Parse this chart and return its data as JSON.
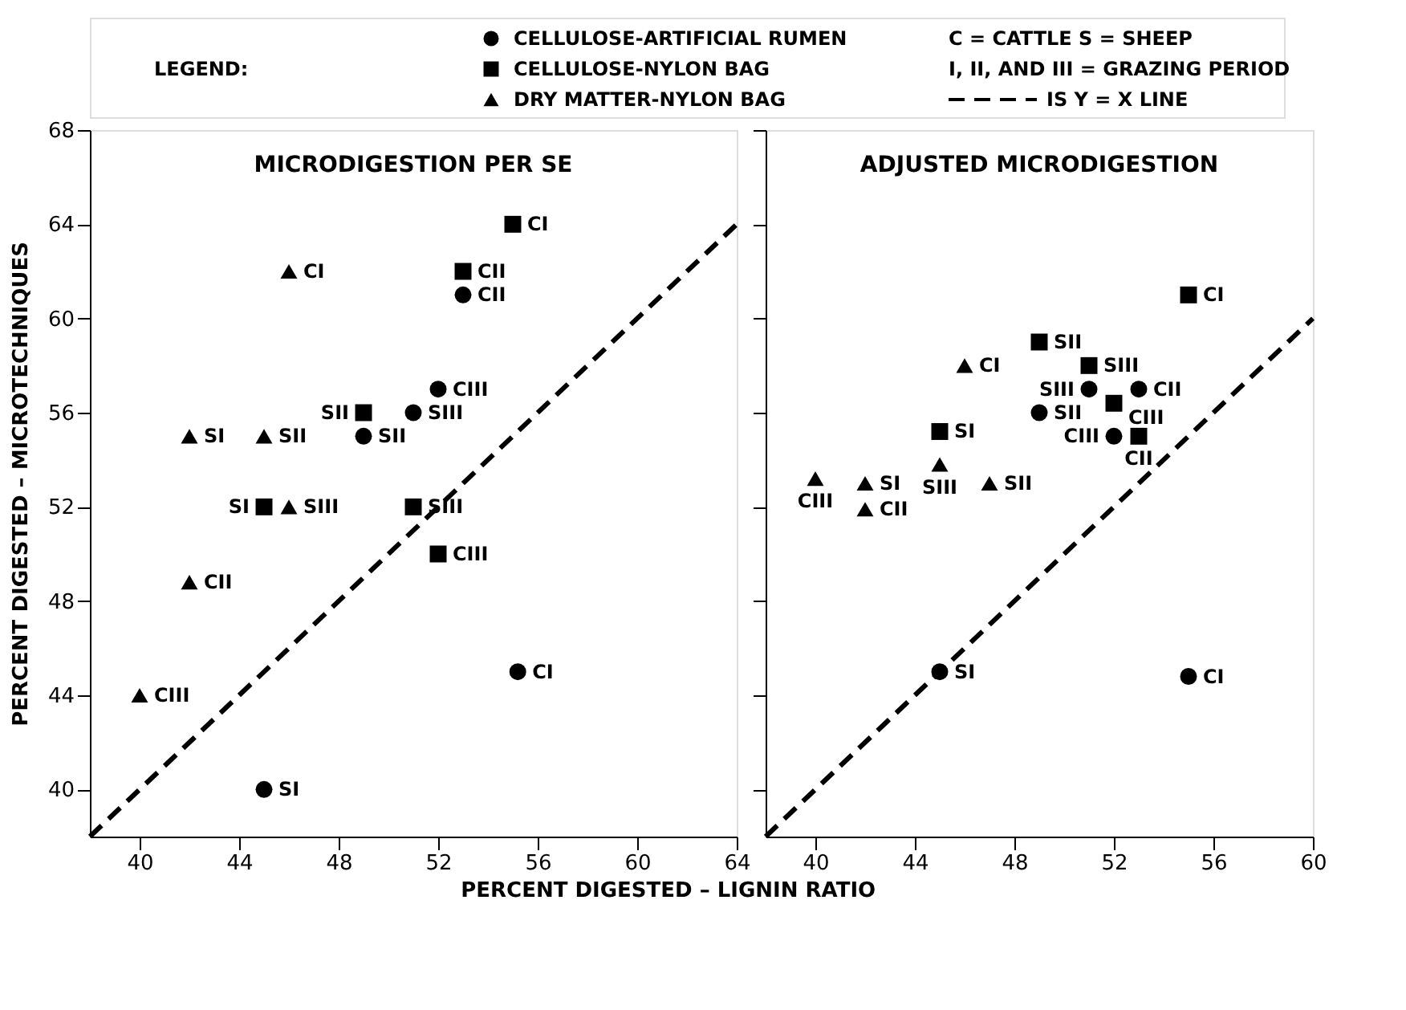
{
  "chart_data": [
    {
      "type": "scatter",
      "title": "MICRODIGESTION PER SE",
      "xlabel": "PERCENT DIGESTED – LIGNIN RATIO",
      "ylabel": "PERCENT DIGESTED – MICROTECHNIQUES",
      "xlim": [
        38,
        64
      ],
      "ylim": [
        38,
        68
      ],
      "xticks": [
        40,
        44,
        48,
        52,
        56,
        60,
        64
      ],
      "yticks": [
        40,
        44,
        48,
        52,
        56,
        60,
        64,
        68
      ],
      "grid": false,
      "legend": "top",
      "series": [
        {
          "name": "CELLULOSE-ARTIFICIAL RUMEN",
          "color": "#000000",
          "marker": "circle",
          "x": [
            53,
            52,
            51,
            49,
            55.2,
            45
          ],
          "values": [
            61,
            57,
            56,
            55,
            45,
            40
          ]
        },
        {
          "name": "CELLULOSE-NYLON BAG",
          "color": "#000000",
          "marker": "square",
          "x": [
            55,
            53,
            49,
            51,
            45,
            52
          ],
          "values": [
            64,
            62,
            56,
            52,
            52,
            50
          ]
        },
        {
          "name": "DRY MATTER-NYLON BAG",
          "color": "#000000",
          "marker": "triangle",
          "x": [
            46,
            42,
            45,
            46,
            42,
            40
          ],
          "values": [
            62,
            55,
            55,
            52,
            48.8,
            44
          ]
        },
        {
          "name": "IS Y = X LINE",
          "type": "line",
          "line_style": "dashed",
          "color": "#000000",
          "x": [
            38,
            64
          ],
          "values": [
            38,
            64
          ]
        }
      ],
      "annotations": [
        "LEGEND:",
        "C = CATTLE    S = SHEEP",
        "I, II, AND III = GRAZING PERIOD",
        {
          "text": "CII",
          "x": 53,
          "y": 61
        },
        {
          "text": "CIII",
          "x": 52,
          "y": 57
        },
        {
          "text": "SIII",
          "x": 51,
          "y": 56
        },
        {
          "text": "SII",
          "x": 49,
          "y": 55
        },
        {
          "text": "CI",
          "x": 55.2,
          "y": 45
        },
        {
          "text": "SI",
          "x": 45,
          "y": 40
        },
        {
          "text": "CI",
          "x": 55,
          "y": 64
        },
        {
          "text": "CII",
          "x": 53,
          "y": 62
        },
        {
          "text": "SII",
          "x": 49,
          "y": 56
        },
        {
          "text": "SIII",
          "x": 51,
          "y": 52
        },
        {
          "text": "SI",
          "x": 45,
          "y": 52
        },
        {
          "text": "CIII",
          "x": 52,
          "y": 50
        },
        {
          "text": "CI",
          "x": 46,
          "y": 62
        },
        {
          "text": "SI",
          "x": 42,
          "y": 55
        },
        {
          "text": "SII",
          "x": 45,
          "y": 55
        },
        {
          "text": "SIII",
          "x": 46,
          "y": 52
        },
        {
          "text": "CII",
          "x": 42,
          "y": 48.8
        },
        {
          "text": "CIII",
          "x": 40,
          "y": 44
        }
      ]
    },
    {
      "type": "scatter",
      "title": "ADJUSTED MICRODIGESTION",
      "xlim": [
        38,
        60
      ],
      "ylim": [
        38,
        68
      ],
      "xticks": [
        40,
        44,
        48,
        52,
        56,
        60
      ],
      "yticks": [
        40,
        44,
        48,
        52,
        56,
        60,
        64,
        68
      ],
      "tick_labels": "x",
      "grid": false,
      "series": [
        {
          "color": "#000000",
          "marker": "circle",
          "x": [
            51,
            53,
            49,
            52,
            45,
            55
          ],
          "values": [
            57,
            57,
            56,
            55,
            45,
            44.8
          ]
        },
        {
          "color": "#000000",
          "marker": "square",
          "x": [
            55,
            49,
            51,
            52,
            45,
            53
          ],
          "values": [
            61,
            59,
            58,
            56.4,
            55.2,
            55
          ]
        },
        {
          "color": "#000000",
          "marker": "triangle",
          "x": [
            46,
            45,
            47,
            40,
            42,
            42
          ],
          "values": [
            58,
            53.8,
            53,
            53.2,
            53,
            51.9
          ]
        },
        {
          "type": "line",
          "line_style": "dashed",
          "color": "#000000",
          "x": [
            38,
            60
          ],
          "values": [
            38,
            60
          ]
        }
      ],
      "annotations": [
        {
          "text": "SIII",
          "x": 51,
          "y": 57
        },
        {
          "text": "CII",
          "x": 53,
          "y": 57
        },
        {
          "text": "SII",
          "x": 49,
          "y": 56
        },
        {
          "text": "CIII",
          "x": 52,
          "y": 55
        },
        {
          "text": "SI",
          "x": 45,
          "y": 45
        },
        {
          "text": "CI",
          "x": 55,
          "y": 44.8
        },
        {
          "text": "CI",
          "x": 55,
          "y": 61
        },
        {
          "text": "SII",
          "x": 49,
          "y": 59
        },
        {
          "text": "SIII",
          "x": 51,
          "y": 58
        },
        {
          "text": "CIII",
          "x": 52,
          "y": 56.4
        },
        {
          "text": "SI",
          "x": 45,
          "y": 55.2
        },
        {
          "text": "CII",
          "x": 53,
          "y": 55
        },
        {
          "text": "CI",
          "x": 46,
          "y": 58
        },
        {
          "text": "SIII",
          "x": 45,
          "y": 53.8
        },
        {
          "text": "SII",
          "x": 47,
          "y": 53
        },
        {
          "text": "CIII",
          "x": 40,
          "y": 53.2
        },
        {
          "text": "SI",
          "x": 42,
          "y": 53
        },
        {
          "text": "CII",
          "x": 42,
          "y": 51.9
        }
      ]
    }
  ]
}
